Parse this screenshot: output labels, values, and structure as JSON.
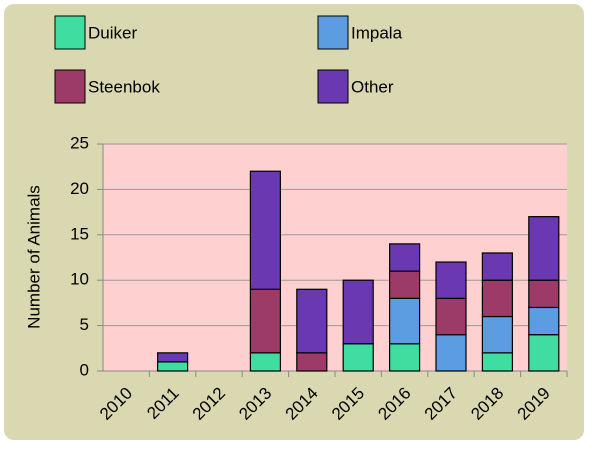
{
  "chart_data": {
    "type": "stacked_bar",
    "y_label": "Number of Animals",
    "categories": [
      "2010",
      "2011",
      "2012",
      "2013",
      "2014",
      "2015",
      "2016",
      "2017",
      "2018",
      "2019"
    ],
    "series": [
      {
        "name": "Duiker",
        "color": "#3fdea0",
        "values": [
          0,
          1,
          0,
          2,
          0,
          3,
          3,
          0,
          2,
          4
        ]
      },
      {
        "name": "Impala",
        "color": "#5b9de0",
        "values": [
          0,
          0,
          0,
          0,
          0,
          0,
          5,
          4,
          4,
          3
        ]
      },
      {
        "name": "Steenbok",
        "color": "#9c3b68",
        "values": [
          0,
          0,
          0,
          7,
          2,
          0,
          3,
          4,
          4,
          3
        ]
      },
      {
        "name": "Other",
        "color": "#6a38b0",
        "values": [
          0,
          1,
          0,
          13,
          7,
          7,
          3,
          4,
          3,
          7
        ]
      }
    ],
    "ylim": [
      0,
      25
    ],
    "yticks": [
      0,
      5,
      10,
      15,
      20,
      25
    ],
    "grid": true
  }
}
